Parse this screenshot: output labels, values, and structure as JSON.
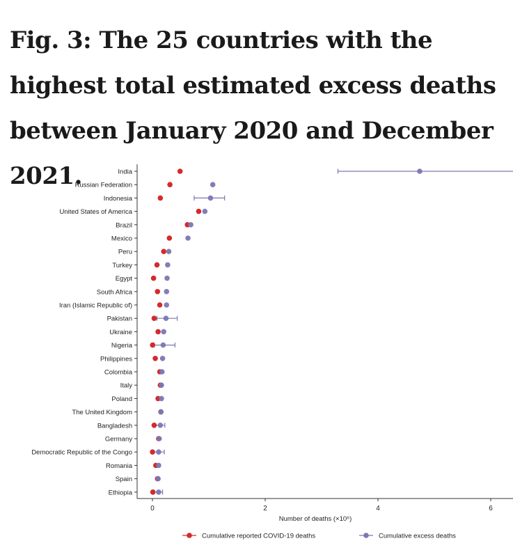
{
  "title": "Fig. 3: The 25 countries with the highest total estimated excess deaths between January 2020 and December 2021.",
  "chart_data": {
    "type": "scatter",
    "xlabel": "Number of deaths (×10⁶)",
    "ylabel": "",
    "xlim": [
      -0.2,
      6.4
    ],
    "xticks": [
      0,
      2,
      4,
      6
    ],
    "categories": [
      "India",
      "Russian Federation",
      "Indonesia",
      "United States of America",
      "Brazil",
      "Mexico",
      "Peru",
      "Turkey",
      "Egypt",
      "South Africa",
      "Iran (Islamic Republic of)",
      "Pakistan",
      "Ukraine",
      "Nigeria",
      "Philippines",
      "Colombia",
      "Italy",
      "Poland",
      "The United Kingdom",
      "Bangladesh",
      "Germany",
      "Democratic Republic of the Congo",
      "Romania",
      "Spain",
      "Ethiopia"
    ],
    "series": [
      {
        "name": "Cumulative reported COVID-19 deaths",
        "color": "#d42a2a",
        "values": [
          0.49,
          0.31,
          0.14,
          0.82,
          0.62,
          0.3,
          0.2,
          0.08,
          0.02,
          0.09,
          0.13,
          0.03,
          0.1,
          0.003,
          0.05,
          0.13,
          0.14,
          0.1,
          0.15,
          0.03,
          0.11,
          0.001,
          0.06,
          0.09,
          0.007
        ]
      },
      {
        "name": "Cumulative excess deaths",
        "color": "#7b77b3",
        "values": [
          4.74,
          1.07,
          1.03,
          0.93,
          0.68,
          0.63,
          0.29,
          0.27,
          0.26,
          0.25,
          0.25,
          0.24,
          0.2,
          0.19,
          0.18,
          0.17,
          0.16,
          0.16,
          0.15,
          0.14,
          0.12,
          0.11,
          0.11,
          0.1,
          0.11
        ],
        "lower": [
          3.29,
          null,
          0.74,
          null,
          null,
          null,
          null,
          null,
          null,
          null,
          null,
          0.08,
          null,
          0.03,
          null,
          null,
          null,
          null,
          null,
          0.05,
          null,
          0.01,
          null,
          null,
          0.03
        ],
        "upper": [
          6.5,
          null,
          1.28,
          null,
          null,
          null,
          null,
          null,
          null,
          null,
          null,
          0.44,
          null,
          0.4,
          null,
          null,
          null,
          null,
          null,
          0.22,
          null,
          0.21,
          null,
          null,
          0.18
        ]
      }
    ],
    "grid": false,
    "legend_position": "bottom"
  }
}
